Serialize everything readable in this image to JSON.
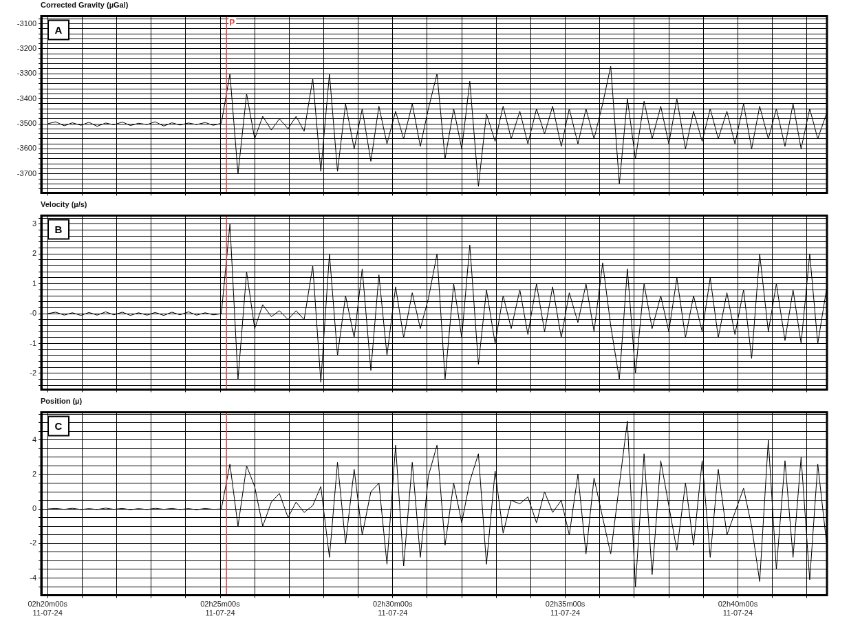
{
  "chart_data": [
    {
      "type": "line",
      "title": "Corrected Gravity (µGal)",
      "annotations": [
        "A"
      ],
      "grid": true,
      "marker": "none",
      "tick_labels": "y",
      "xlim": [
        "--11-07T02:19:49",
        "--11-07T02:42:35"
      ],
      "xticks": [
        {
          "value": "--11-07T02:20:00",
          "label": null
        },
        {
          "value": "--11-07T02:21:00",
          "label": null
        },
        {
          "value": "--11-07T02:22:00",
          "label": null
        },
        {
          "value": "--11-07T02:23:00",
          "label": null
        },
        {
          "value": "--11-07T02:24:00",
          "label": null
        },
        {
          "value": "--11-07T02:25:00",
          "label": null
        },
        {
          "value": "--11-07T02:26:00",
          "label": null
        },
        {
          "value": "--11-07T02:27:00",
          "label": null
        },
        {
          "value": "--11-07T02:28:00",
          "label": null
        },
        {
          "value": "--11-07T02:29:00",
          "label": null
        },
        {
          "value": "--11-07T02:30:00",
          "label": null
        },
        {
          "value": "--11-07T02:31:00",
          "label": null
        },
        {
          "value": "--11-07T02:32:00",
          "label": null
        },
        {
          "value": "--11-07T02:33:00",
          "label": null
        },
        {
          "value": "--11-07T02:34:00",
          "label": null
        },
        {
          "value": "--11-07T02:35:00",
          "label": null
        },
        {
          "value": "--11-07T02:36:00",
          "label": null
        },
        {
          "value": "--11-07T02:37:00",
          "label": null
        },
        {
          "value": "--11-07T02:38:00",
          "label": null
        },
        {
          "value": "--11-07T02:39:00",
          "label": null
        },
        {
          "value": "--11-07T02:40:00",
          "label": null
        },
        {
          "value": "--11-07T02:41:00",
          "label": null
        },
        {
          "value": "--11-07T02:42:00",
          "label": null
        }
      ],
      "ylim": [
        -3776,
        -3070
      ],
      "yticks": [
        {
          "value": -3760,
          "label": null
        },
        {
          "value": -3740,
          "label": null
        },
        {
          "value": -3720,
          "label": null
        },
        -3700,
        {
          "value": -3680,
          "label": null
        },
        {
          "value": -3660,
          "label": null
        },
        {
          "value": -3640,
          "label": null
        },
        {
          "value": -3620,
          "label": null
        },
        -3600,
        {
          "value": -3580,
          "label": null
        },
        {
          "value": -3560,
          "label": null
        },
        {
          "value": -3540,
          "label": null
        },
        {
          "value": -3520,
          "label": null
        },
        -3500,
        {
          "value": -3480,
          "label": null
        },
        {
          "value": -3460,
          "label": null
        },
        {
          "value": -3440,
          "label": null
        },
        {
          "value": -3420,
          "label": null
        },
        -3400,
        {
          "value": -3380,
          "label": null
        },
        {
          "value": -3360,
          "label": null
        },
        {
          "value": -3340,
          "label": null
        },
        {
          "value": -3320,
          "label": null
        },
        -3300,
        {
          "value": -3280,
          "label": null
        },
        {
          "value": -3260,
          "label": null
        },
        {
          "value": -3240,
          "label": null
        },
        {
          "value": -3220,
          "label": null
        },
        -3200,
        {
          "value": -3180,
          "label": null
        },
        {
          "value": -3160,
          "label": null
        },
        {
          "value": -3140,
          "label": null
        },
        {
          "value": -3120,
          "label": null
        },
        -3100,
        {
          "value": -3080,
          "label": null
        }
      ],
      "ref_lines": [
        {
          "axis": "x",
          "value": "--11-07T02:25:11",
          "label": "P",
          "color": "#e8413a"
        }
      ],
      "x": [
        "--11-07T02:20:00",
        "--11-07T02:20:14",
        "--11-07T02:20:29",
        "--11-07T02:20:43",
        "--11-07T02:20:58",
        "--11-07T02:21:12",
        "--11-07T02:21:26",
        "--11-07T02:21:41",
        "--11-07T02:21:55",
        "--11-07T02:22:10",
        "--11-07T02:22:24",
        "--11-07T02:22:38",
        "--11-07T02:22:53",
        "--11-07T02:23:07",
        "--11-07T02:23:22",
        "--11-07T02:23:36",
        "--11-07T02:23:50",
        "--11-07T02:24:05",
        "--11-07T02:24:19",
        "--11-07T02:24:34",
        "--11-07T02:24:48",
        "--11-07T02:25:02",
        "--11-07T02:25:17",
        "--11-07T02:25:31",
        "--11-07T02:25:46",
        "--11-07T02:26:00",
        "--11-07T02:26:14",
        "--11-07T02:26:29",
        "--11-07T02:26:43",
        "--11-07T02:26:58",
        "--11-07T02:27:12",
        "--11-07T02:27:26",
        "--11-07T02:27:41",
        "--11-07T02:27:55",
        "--11-07T02:28:10",
        "--11-07T02:28:24",
        "--11-07T02:28:38",
        "--11-07T02:28:53",
        "--11-07T02:29:07",
        "--11-07T02:29:22",
        "--11-07T02:29:36",
        "--11-07T02:29:50",
        "--11-07T02:30:05",
        "--11-07T02:30:19",
        "--11-07T02:30:34",
        "--11-07T02:30:48",
        "--11-07T02:31:02",
        "--11-07T02:31:17",
        "--11-07T02:31:31",
        "--11-07T02:31:46",
        "--11-07T02:32:00",
        "--11-07T02:32:14",
        "--11-07T02:32:29",
        "--11-07T02:32:43",
        "--11-07T02:32:58",
        "--11-07T02:33:12",
        "--11-07T02:33:26",
        "--11-07T02:33:41",
        "--11-07T02:33:55",
        "--11-07T02:34:10",
        "--11-07T02:34:24",
        "--11-07T02:34:38",
        "--11-07T02:34:53",
        "--11-07T02:35:07",
        "--11-07T02:35:22",
        "--11-07T02:35:36",
        "--11-07T02:35:50",
        "--11-07T02:36:05",
        "--11-07T02:36:19",
        "--11-07T02:36:34",
        "--11-07T02:36:48",
        "--11-07T02:37:02",
        "--11-07T02:37:17",
        "--11-07T02:37:31",
        "--11-07T02:37:46",
        "--11-07T02:38:00",
        "--11-07T02:38:14",
        "--11-07T02:38:29",
        "--11-07T02:38:43",
        "--11-07T02:38:58",
        "--11-07T02:39:12",
        "--11-07T02:39:26",
        "--11-07T02:39:41",
        "--11-07T02:39:55",
        "--11-07T02:40:10",
        "--11-07T02:40:24",
        "--11-07T02:40:38",
        "--11-07T02:40:53",
        "--11-07T02:41:07",
        "--11-07T02:41:22",
        "--11-07T02:41:36",
        "--11-07T02:41:50",
        "--11-07T02:42:05",
        "--11-07T02:42:19",
        "--11-07T02:42:34"
      ],
      "series": [
        {
          "color": "#000000",
          "values": [
            -3500,
            -3492,
            -3508,
            -3496,
            -3506,
            -3494,
            -3510,
            -3497,
            -3504,
            -3493,
            -3507,
            -3498,
            -3503,
            -3492,
            -3509,
            -3496,
            -3505,
            -3497,
            -3503,
            -3495,
            -3506,
            -3498,
            -3300,
            -3700,
            -3380,
            -3560,
            -3470,
            -3525,
            -3480,
            -3520,
            -3470,
            -3530,
            -3320,
            -3690,
            -3300,
            -3690,
            -3420,
            -3600,
            -3440,
            -3650,
            -3430,
            -3580,
            -3450,
            -3560,
            -3420,
            -3590,
            -3440,
            -3300,
            -3640,
            -3440,
            -3600,
            -3330,
            -3750,
            -3460,
            -3570,
            -3430,
            -3560,
            -3450,
            -3580,
            -3440,
            -3540,
            -3430,
            -3590,
            -3440,
            -3580,
            -3440,
            -3560,
            -3420,
            -3270,
            -3740,
            -3400,
            -3640,
            -3410,
            -3560,
            -3430,
            -3580,
            -3400,
            -3600,
            -3450,
            -3570,
            -3440,
            -3560,
            -3450,
            -3580,
            -3420,
            -3600,
            -3430,
            -3560,
            -3440,
            -3590,
            -3420,
            -3600,
            -3440,
            -3560,
            -3460
          ]
        }
      ]
    },
    {
      "type": "line",
      "title": "Velocity (µ/s)",
      "annotations": [
        "B"
      ],
      "grid": true,
      "marker": "none",
      "tick_labels": "y",
      "xlim": [
        "--11-07T02:19:49",
        "--11-07T02:42:35"
      ],
      "xticks": [
        {
          "value": "--11-07T02:20:00",
          "label": null
        },
        {
          "value": "--11-07T02:21:00",
          "label": null
        },
        {
          "value": "--11-07T02:22:00",
          "label": null
        },
        {
          "value": "--11-07T02:23:00",
          "label": null
        },
        {
          "value": "--11-07T02:24:00",
          "label": null
        },
        {
          "value": "--11-07T02:25:00",
          "label": null
        },
        {
          "value": "--11-07T02:26:00",
          "label": null
        },
        {
          "value": "--11-07T02:27:00",
          "label": null
        },
        {
          "value": "--11-07T02:28:00",
          "label": null
        },
        {
          "value": "--11-07T02:29:00",
          "label": null
        },
        {
          "value": "--11-07T02:30:00",
          "label": null
        },
        {
          "value": "--11-07T02:31:00",
          "label": null
        },
        {
          "value": "--11-07T02:32:00",
          "label": null
        },
        {
          "value": "--11-07T02:33:00",
          "label": null
        },
        {
          "value": "--11-07T02:34:00",
          "label": null
        },
        {
          "value": "--11-07T02:35:00",
          "label": null
        },
        {
          "value": "--11-07T02:36:00",
          "label": null
        },
        {
          "value": "--11-07T02:37:00",
          "label": null
        },
        {
          "value": "--11-07T02:38:00",
          "label": null
        },
        {
          "value": "--11-07T02:39:00",
          "label": null
        },
        {
          "value": "--11-07T02:40:00",
          "label": null
        },
        {
          "value": "--11-07T02:41:00",
          "label": null
        },
        {
          "value": "--11-07T02:42:00",
          "label": null
        }
      ],
      "ylim": [
        -2.54,
        3.28
      ],
      "yticks": [
        {
          "value": -2.4,
          "label": null
        },
        {
          "value": -2.2,
          "label": null
        },
        -2,
        {
          "value": -1.8,
          "label": null
        },
        {
          "value": -1.6,
          "label": null
        },
        {
          "value": -1.4,
          "label": null
        },
        {
          "value": -1.2,
          "label": null
        },
        -1,
        {
          "value": -0.8,
          "label": null
        },
        {
          "value": -0.6,
          "label": null
        },
        {
          "value": -0.4,
          "label": null
        },
        {
          "value": -0.2,
          "label": null
        },
        {
          "value": 0,
          "label": "-0"
        },
        {
          "value": 0.2,
          "label": null
        },
        {
          "value": 0.4,
          "label": null
        },
        {
          "value": 0.6,
          "label": null
        },
        {
          "value": 0.8,
          "label": null
        },
        1,
        {
          "value": 1.2,
          "label": null
        },
        {
          "value": 1.4,
          "label": null
        },
        {
          "value": 1.6,
          "label": null
        },
        {
          "value": 1.8,
          "label": null
        },
        2,
        {
          "value": 2.2,
          "label": null
        },
        {
          "value": 2.4,
          "label": null
        },
        {
          "value": 2.6,
          "label": null
        },
        {
          "value": 2.8,
          "label": null
        },
        3,
        {
          "value": 3.2,
          "label": null
        }
      ],
      "ref_lines": [
        {
          "axis": "x",
          "value": "--11-07T02:25:11",
          "color": "#e8413a"
        }
      ],
      "x": [
        "--11-07T02:20:00",
        "--11-07T02:20:14",
        "--11-07T02:20:29",
        "--11-07T02:20:43",
        "--11-07T02:20:58",
        "--11-07T02:21:12",
        "--11-07T02:21:26",
        "--11-07T02:21:41",
        "--11-07T02:21:55",
        "--11-07T02:22:10",
        "--11-07T02:22:24",
        "--11-07T02:22:38",
        "--11-07T02:22:53",
        "--11-07T02:23:07",
        "--11-07T02:23:22",
        "--11-07T02:23:36",
        "--11-07T02:23:50",
        "--11-07T02:24:05",
        "--11-07T02:24:19",
        "--11-07T02:24:34",
        "--11-07T02:24:48",
        "--11-07T02:25:02",
        "--11-07T02:25:17",
        "--11-07T02:25:31",
        "--11-07T02:25:46",
        "--11-07T02:26:00",
        "--11-07T02:26:14",
        "--11-07T02:26:29",
        "--11-07T02:26:43",
        "--11-07T02:26:58",
        "--11-07T02:27:12",
        "--11-07T02:27:26",
        "--11-07T02:27:41",
        "--11-07T02:27:55",
        "--11-07T02:28:10",
        "--11-07T02:28:24",
        "--11-07T02:28:38",
        "--11-07T02:28:53",
        "--11-07T02:29:07",
        "--11-07T02:29:22",
        "--11-07T02:29:36",
        "--11-07T02:29:50",
        "--11-07T02:30:05",
        "--11-07T02:30:19",
        "--11-07T02:30:34",
        "--11-07T02:30:48",
        "--11-07T02:31:02",
        "--11-07T02:31:17",
        "--11-07T02:31:31",
        "--11-07T02:31:46",
        "--11-07T02:32:00",
        "--11-07T02:32:14",
        "--11-07T02:32:29",
        "--11-07T02:32:43",
        "--11-07T02:32:58",
        "--11-07T02:33:12",
        "--11-07T02:33:26",
        "--11-07T02:33:41",
        "--11-07T02:33:55",
        "--11-07T02:34:10",
        "--11-07T02:34:24",
        "--11-07T02:34:38",
        "--11-07T02:34:53",
        "--11-07T02:35:07",
        "--11-07T02:35:22",
        "--11-07T02:35:36",
        "--11-07T02:35:50",
        "--11-07T02:36:05",
        "--11-07T02:36:19",
        "--11-07T02:36:34",
        "--11-07T02:36:48",
        "--11-07T02:37:02",
        "--11-07T02:37:17",
        "--11-07T02:37:31",
        "--11-07T02:37:46",
        "--11-07T02:38:00",
        "--11-07T02:38:14",
        "--11-07T02:38:29",
        "--11-07T02:38:43",
        "--11-07T02:38:58",
        "--11-07T02:39:12",
        "--11-07T02:39:26",
        "--11-07T02:39:41",
        "--11-07T02:39:55",
        "--11-07T02:40:10",
        "--11-07T02:40:24",
        "--11-07T02:40:38",
        "--11-07T02:40:53",
        "--11-07T02:41:07",
        "--11-07T02:41:22",
        "--11-07T02:41:36",
        "--11-07T02:41:50",
        "--11-07T02:42:05",
        "--11-07T02:42:19",
        "--11-07T02:42:34"
      ],
      "series": [
        {
          "color": "#000000",
          "values": [
            0,
            0.05,
            -0.05,
            0.03,
            -0.06,
            0.04,
            -0.05,
            0.06,
            -0.04,
            0.05,
            -0.06,
            0.03,
            -0.05,
            0.04,
            -0.06,
            0.05,
            -0.04,
            0.06,
            -0.05,
            0.03,
            -0.04,
            0,
            3.0,
            -2.2,
            1.4,
            -0.5,
            0.3,
            -0.1,
            0.1,
            -0.2,
            0.1,
            -0.2,
            1.6,
            -2.3,
            2.0,
            -1.4,
            0.6,
            -0.8,
            1.5,
            -1.9,
            1.3,
            -1.4,
            0.9,
            -0.8,
            0.7,
            -0.5,
            0.5,
            2.0,
            -2.2,
            1.0,
            -0.8,
            2.3,
            -1.7,
            0.8,
            -1.0,
            0.6,
            -0.5,
            0.8,
            -0.7,
            1.0,
            -0.6,
            0.9,
            -0.8,
            0.7,
            -0.3,
            1.0,
            -0.6,
            1.7,
            -0.4,
            -2.2,
            1.5,
            -2.0,
            1.0,
            -0.5,
            0.6,
            -0.6,
            1.2,
            -0.8,
            0.6,
            -0.6,
            1.2,
            -0.8,
            0.7,
            -0.7,
            0.8,
            -1.5,
            2.0,
            -0.6,
            1.0,
            -0.9,
            0.8,
            -1.0,
            2.0,
            -1.0,
            0.8
          ]
        }
      ]
    },
    {
      "type": "line",
      "title": "Position (µ)",
      "annotations": [
        "C"
      ],
      "grid": true,
      "marker": "none",
      "xlim": [
        "--11-07T02:19:49",
        "--11-07T02:42:35"
      ],
      "xticks": [
        {
          "value": "--11-07T02:20:00",
          "label": "02h20m00s\n11-07-24"
        },
        {
          "value": "--11-07T02:21:00",
          "label": null
        },
        {
          "value": "--11-07T02:22:00",
          "label": null
        },
        {
          "value": "--11-07T02:23:00",
          "label": null
        },
        {
          "value": "--11-07T02:24:00",
          "label": null
        },
        {
          "value": "--11-07T02:25:00",
          "label": "02h25m00s\n11-07-24"
        },
        {
          "value": "--11-07T02:26:00",
          "label": null
        },
        {
          "value": "--11-07T02:27:00",
          "label": null
        },
        {
          "value": "--11-07T02:28:00",
          "label": null
        },
        {
          "value": "--11-07T02:29:00",
          "label": null
        },
        {
          "value": "--11-07T02:30:00",
          "label": "02h30m00s\n11-07-24"
        },
        {
          "value": "--11-07T02:31:00",
          "label": null
        },
        {
          "value": "--11-07T02:32:00",
          "label": null
        },
        {
          "value": "--11-07T02:33:00",
          "label": null
        },
        {
          "value": "--11-07T02:34:00",
          "label": null
        },
        {
          "value": "--11-07T02:35:00",
          "label": "02h35m00s\n11-07-24"
        },
        {
          "value": "--11-07T02:36:00",
          "label": null
        },
        {
          "value": "--11-07T02:37:00",
          "label": null
        },
        {
          "value": "--11-07T02:38:00",
          "label": null
        },
        {
          "value": "--11-07T02:39:00",
          "label": null
        },
        {
          "value": "--11-07T02:40:00",
          "label": "02h40m00s\n11-07-24"
        },
        {
          "value": "--11-07T02:41:00",
          "label": null
        },
        {
          "value": "--11-07T02:42:00",
          "label": null
        }
      ],
      "ylim": [
        -5,
        5.6
      ],
      "yticks": [
        {
          "value": -4.5,
          "label": null
        },
        -4,
        {
          "value": -3.5,
          "label": null
        },
        {
          "value": -3,
          "label": null
        },
        {
          "value": -2.5,
          "label": null
        },
        -2,
        {
          "value": -1.5,
          "label": null
        },
        {
          "value": -1,
          "label": null
        },
        {
          "value": -0.5,
          "label": null
        },
        0,
        {
          "value": 0.5,
          "label": null
        },
        {
          "value": 1,
          "label": null
        },
        {
          "value": 1.5,
          "label": null
        },
        2,
        {
          "value": 2.5,
          "label": null
        },
        {
          "value": 3,
          "label": null
        },
        {
          "value": 3.5,
          "label": null
        },
        4,
        {
          "value": 4.5,
          "label": null
        },
        {
          "value": 5,
          "label": null
        },
        {
          "value": 5.5,
          "label": null
        }
      ],
      "ref_lines": [
        {
          "axis": "x",
          "value": "--11-07T02:25:11",
          "color": "#e8413a"
        }
      ],
      "x": [
        "--11-07T02:20:00",
        "--11-07T02:20:14",
        "--11-07T02:20:29",
        "--11-07T02:20:43",
        "--11-07T02:20:58",
        "--11-07T02:21:12",
        "--11-07T02:21:26",
        "--11-07T02:21:41",
        "--11-07T02:21:55",
        "--11-07T02:22:10",
        "--11-07T02:22:24",
        "--11-07T02:22:38",
        "--11-07T02:22:53",
        "--11-07T02:23:07",
        "--11-07T02:23:22",
        "--11-07T02:23:36",
        "--11-07T02:23:50",
        "--11-07T02:24:05",
        "--11-07T02:24:19",
        "--11-07T02:24:34",
        "--11-07T02:24:48",
        "--11-07T02:25:02",
        "--11-07T02:25:17",
        "--11-07T02:25:31",
        "--11-07T02:25:46",
        "--11-07T02:26:00",
        "--11-07T02:26:14",
        "--11-07T02:26:29",
        "--11-07T02:26:43",
        "--11-07T02:26:58",
        "--11-07T02:27:12",
        "--11-07T02:27:26",
        "--11-07T02:27:41",
        "--11-07T02:27:55",
        "--11-07T02:28:10",
        "--11-07T02:28:24",
        "--11-07T02:28:38",
        "--11-07T02:28:53",
        "--11-07T02:29:07",
        "--11-07T02:29:22",
        "--11-07T02:29:36",
        "--11-07T02:29:50",
        "--11-07T02:30:05",
        "--11-07T02:30:19",
        "--11-07T02:30:34",
        "--11-07T02:30:48",
        "--11-07T02:31:02",
        "--11-07T02:31:17",
        "--11-07T02:31:31",
        "--11-07T02:31:46",
        "--11-07T02:32:00",
        "--11-07T02:32:14",
        "--11-07T02:32:29",
        "--11-07T02:32:43",
        "--11-07T02:32:58",
        "--11-07T02:33:12",
        "--11-07T02:33:26",
        "--11-07T02:33:41",
        "--11-07T02:33:55",
        "--11-07T02:34:10",
        "--11-07T02:34:24",
        "--11-07T02:34:38",
        "--11-07T02:34:53",
        "--11-07T02:35:07",
        "--11-07T02:35:22",
        "--11-07T02:35:36",
        "--11-07T02:35:50",
        "--11-07T02:36:05",
        "--11-07T02:36:19",
        "--11-07T02:36:34",
        "--11-07T02:36:48",
        "--11-07T02:37:02",
        "--11-07T02:37:17",
        "--11-07T02:37:31",
        "--11-07T02:37:46",
        "--11-07T02:38:00",
        "--11-07T02:38:14",
        "--11-07T02:38:29",
        "--11-07T02:38:43",
        "--11-07T02:38:58",
        "--11-07T02:39:12",
        "--11-07T02:39:26",
        "--11-07T02:39:41",
        "--11-07T02:39:55",
        "--11-07T02:40:10",
        "--11-07T02:40:24",
        "--11-07T02:40:38",
        "--11-07T02:40:53",
        "--11-07T02:41:07",
        "--11-07T02:41:22",
        "--11-07T02:41:36",
        "--11-07T02:41:50",
        "--11-07T02:42:05",
        "--11-07T02:42:19",
        "--11-07T02:42:34"
      ],
      "series": [
        {
          "color": "#000000",
          "values": [
            0,
            0.03,
            -0.02,
            0.04,
            -0.03,
            0.02,
            -0.03,
            0.05,
            -0.02,
            0.03,
            -0.04,
            0.02,
            -0.03,
            0.04,
            -0.02,
            0.03,
            -0.03,
            0.02,
            -0.04,
            0.03,
            -0.02,
            0,
            2.6,
            -1.0,
            2.5,
            1.3,
            -1.0,
            0.4,
            0.9,
            -0.5,
            0.4,
            -0.2,
            0.2,
            1.3,
            -2.8,
            2.7,
            -2.0,
            2.3,
            -1.5,
            1.0,
            1.5,
            -3.2,
            3.7,
            -3.3,
            2.7,
            -2.8,
            1.9,
            3.7,
            -2.1,
            1.5,
            -0.8,
            1.6,
            3.2,
            -3.2,
            2.2,
            -1.4,
            0.5,
            0.3,
            0.7,
            -0.8,
            1.0,
            -0.2,
            0.5,
            -1.5,
            2.0,
            -2.6,
            1.8,
            -0.5,
            -2.6,
            1.4,
            5.1,
            -4.5,
            3.2,
            -3.8,
            2.8,
            0.2,
            -2.4,
            1.5,
            -2.1,
            2.8,
            -2.8,
            2.3,
            -1.5,
            -0.2,
            1.2,
            -1.0,
            -4.2,
            4.0,
            -3.5,
            2.8,
            -2.8,
            3.0,
            -4.1,
            2.6,
            -1.9
          ]
        }
      ]
    }
  ]
}
